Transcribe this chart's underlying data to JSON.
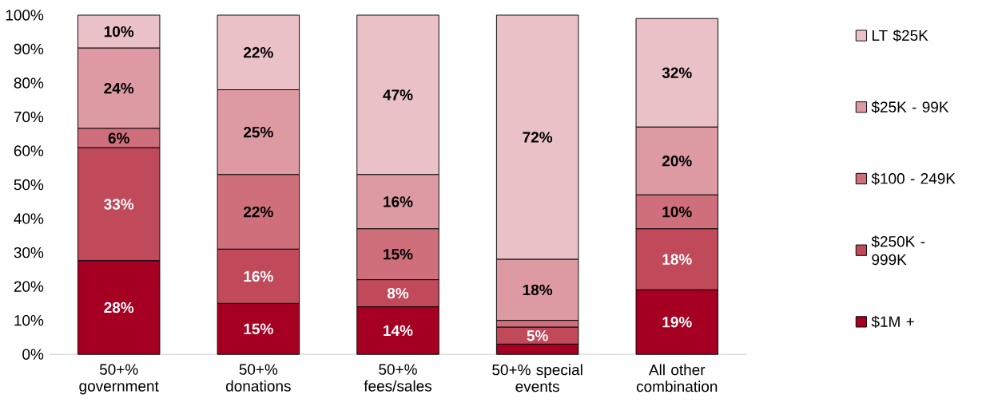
{
  "chart_data": {
    "type": "bar",
    "stacked": true,
    "categories": [
      "50+% government",
      "50+% donations",
      "50+% fees/sales",
      "50+% special events",
      "All other combination"
    ],
    "series": [
      {
        "name": "$1M +",
        "color": "#a50021",
        "values": [
          27.6,
          15,
          14,
          3,
          19
        ],
        "value_labels": [
          "28%",
          "15%",
          "14%",
          null,
          "19%"
        ]
      },
      {
        "name": "$250K - 999K",
        "color": "#c0495a",
        "values": [
          33.3,
          16,
          8,
          5,
          18
        ],
        "value_labels": [
          "33%",
          "16%",
          "8%",
          "5%",
          "18%"
        ]
      },
      {
        "name": "$100 - 249K",
        "color": "#cf6f7c",
        "values": [
          5.7,
          22,
          15,
          2,
          10
        ],
        "value_labels": [
          "6%",
          "22%",
          "15%",
          null,
          "10%"
        ]
      },
      {
        "name": "$25K - 99K",
        "color": "#dd9aa3",
        "values": [
          23.7,
          25,
          16,
          18,
          20
        ],
        "value_labels": [
          "24%",
          "25%",
          "16%",
          "18%",
          "20%"
        ]
      },
      {
        "name": "LT $25K",
        "color": "#eac1c7",
        "values": [
          9.7,
          22,
          47,
          72,
          32
        ],
        "value_labels": [
          "10%",
          "22%",
          "47%",
          "72%",
          "32%"
        ]
      }
    ],
    "ylim": [
      0,
      100
    ],
    "yticks": [
      {
        "value": 0,
        "label": "0%"
      },
      {
        "value": 10,
        "label": "10%"
      },
      {
        "value": 20,
        "label": "20%"
      },
      {
        "value": 30,
        "label": "30%"
      },
      {
        "value": 40,
        "label": "40%"
      },
      {
        "value": 50,
        "label": "50%"
      },
      {
        "value": 60,
        "label": "60%"
      },
      {
        "value": 70,
        "label": "70%"
      },
      {
        "value": 80,
        "label": "80%"
      },
      {
        "value": 90,
        "label": "90%"
      },
      {
        "value": 100,
        "label": "100%"
      }
    ],
    "legend": "right",
    "grid": false
  }
}
